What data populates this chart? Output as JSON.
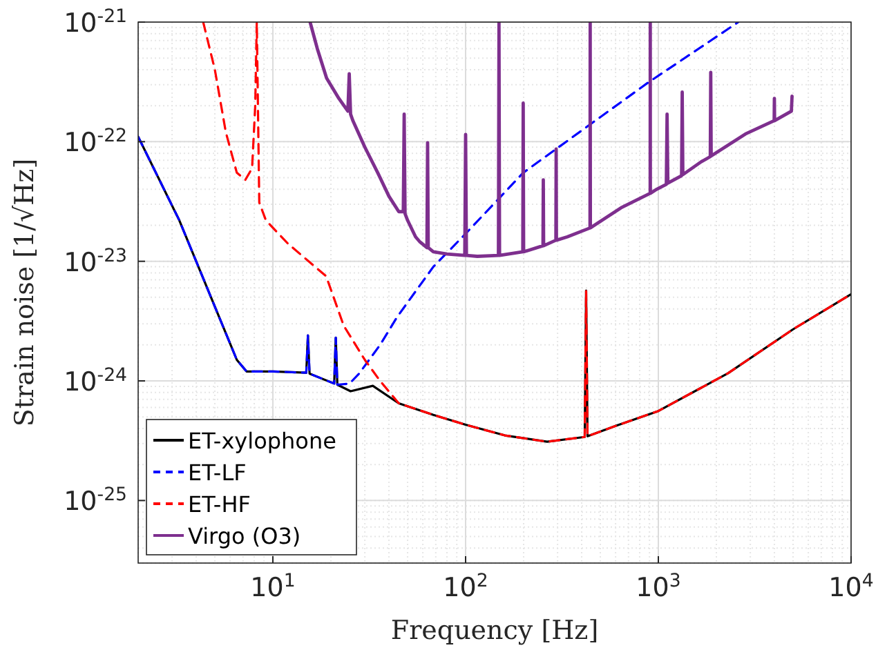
{
  "chart_data": {
    "type": "line",
    "xlabel": "Frequency [Hz]",
    "ylabel": "Strain noise [1/√Hz]",
    "log": "xy",
    "grid": true,
    "legend": "bottom left",
    "xlim": [
      2,
      10000
    ],
    "ylim": [
      3e-26,
      1e-21
    ],
    "xticks": [
      {
        "value": 10,
        "label": "10$^{1}$"
      },
      {
        "value": 100,
        "label": "10$^{2}$"
      },
      {
        "value": 1000,
        "label": "10$^{3}$"
      },
      {
        "value": 10000,
        "label": "10$^{4}$"
      }
    ],
    "yticks": [
      {
        "value": 1e-25,
        "label": "10$^{-25}$"
      },
      {
        "value": 1e-24,
        "label": "10$^{-24}$"
      },
      {
        "value": 1e-23,
        "label": "10$^{-23}$"
      },
      {
        "value": 1e-22,
        "label": "10$^{-22}$"
      },
      {
        "value": 1e-21,
        "label": "10$^{-21}$"
      }
    ],
    "series": [
      {
        "name": "ET-xylophone",
        "color": "#000000",
        "line_style": "solid",
        "x": [
          2,
          3.27,
          5.27,
          6.5,
          7.3,
          10,
          14.9,
          15.2,
          15.5,
          20.8,
          21.2,
          21.6,
          25.3,
          33,
          45,
          68,
          100,
          160,
          265,
          415,
          422,
          429,
          600,
          1000,
          2300,
          5000,
          10000
        ],
        "values": [
          1.1e-22,
          2.2e-23,
          3.4e-24,
          1.5e-24,
          1.2e-24,
          1.2e-24,
          1.17e-24,
          2.4e-24,
          1.15e-24,
          9.5e-25,
          2.3e-24,
          9.3e-25,
          8.2e-25,
          9.1e-25,
          6.5e-25,
          5.2e-25,
          4.3e-25,
          3.5e-25,
          3.1e-25,
          3.4e-25,
          5.7e-24,
          3.45e-25,
          4.2e-25,
          5.6e-25,
          1.16e-24,
          2.7e-24,
          5.3e-24
        ]
      },
      {
        "name": "ET-LF",
        "color": "#0000ff",
        "line_style": "dashed",
        "x": [
          2,
          3.27,
          5.27,
          6.5,
          7.3,
          10,
          14.9,
          15.2,
          15.5,
          20.8,
          21.2,
          21.6,
          25,
          28,
          36,
          44,
          68,
          100,
          199,
          880,
          2600
        ],
        "values": [
          1.1e-22,
          2.2e-23,
          3.4e-24,
          1.5e-24,
          1.2e-24,
          1.2e-24,
          1.17e-24,
          2.4e-24,
          1.15e-24,
          9.5e-25,
          2.3e-24,
          9.3e-25,
          9.5e-25,
          1.15e-24,
          2e-24,
          3.4e-24,
          9e-24,
          1.7e-23,
          5.5e-23,
          3.1e-22,
          1e-21
        ]
      },
      {
        "name": "ET-HF",
        "color": "#ff0000",
        "line_style": "dashed",
        "x": [
          4.35,
          5,
          5.7,
          6.5,
          7.2,
          7.8,
          8.1,
          8.25,
          8.5,
          9.2,
          12,
          18.9,
          23.3,
          30,
          36,
          45,
          68,
          100,
          160,
          265,
          415,
          422,
          429,
          600,
          1000,
          2300,
          5000,
          10000
        ],
        "values": [
          1e-21,
          4e-22,
          1.2e-22,
          5.5e-23,
          4.8e-23,
          6e-23,
          2e-22,
          1e-21,
          3.1e-23,
          2.2e-23,
          1.4e-23,
          7.5e-24,
          2.9e-24,
          1.5e-24,
          1e-24,
          6.5e-25,
          5.2e-25,
          4.3e-25,
          3.5e-25,
          3.1e-25,
          3.4e-25,
          5.7e-24,
          3.45e-25,
          4.2e-25,
          5.6e-25,
          1.16e-24,
          2.7e-24,
          5.3e-24
        ]
      },
      {
        "name": "Virgo (O3)",
        "color": "#7e2f8e",
        "line_style": "solid",
        "x": [
          15.6,
          17,
          19,
          22,
          24.5,
          24.9,
          25.3,
          26,
          30,
          35,
          40,
          45,
          47.5,
          48,
          48.5,
          50,
          55,
          58,
          63,
          63.5,
          64,
          68,
          80,
          99,
          100,
          101,
          115,
          148,
          149,
          150,
          198,
          199,
          200,
          252,
          253,
          254,
          294,
          295,
          296,
          337,
          442,
          443,
          444,
          640,
          907,
          908,
          909,
          980,
          1100,
          1110,
          1120,
          1320,
          1330,
          1340,
          1670,
          1860,
          1870,
          1880,
          2830,
          3990,
          4000,
          4010,
          4900,
          4940
        ],
        "values": [
          1e-21,
          6e-22,
          3.4e-22,
          2.3e-22,
          1.8e-22,
          3.7e-22,
          1.7e-22,
          1.5e-22,
          9e-23,
          5.5e-23,
          3.5e-23,
          2.6e-23,
          2.6e-23,
          1.7e-22,
          2.5e-23,
          2.2e-23,
          1.6e-23,
          1.45e-23,
          1.3e-23,
          9.8e-23,
          1.3e-23,
          1.2e-23,
          1.15e-23,
          1.12e-23,
          1.15e-22,
          1.12e-23,
          1.1e-23,
          1.12e-23,
          1e-21,
          1.12e-23,
          1.2e-23,
          2.1e-22,
          1.2e-23,
          1.35e-23,
          4.8e-23,
          1.35e-23,
          1.5e-23,
          8.7e-23,
          1.5e-23,
          1.6e-23,
          1.9e-23,
          1e-21,
          1.9e-23,
          2.8e-23,
          3.7e-23,
          1e-21,
          3.7e-23,
          4e-23,
          4.4e-23,
          1.7e-22,
          4.5e-23,
          5.2e-23,
          2.6e-22,
          5.3e-23,
          6.8e-23,
          7.5e-23,
          3.8e-22,
          7.6e-23,
          1.16e-22,
          1.5e-22,
          2.3e-22,
          1.5e-22,
          1.8e-22,
          2.4e-22
        ]
      }
    ]
  }
}
